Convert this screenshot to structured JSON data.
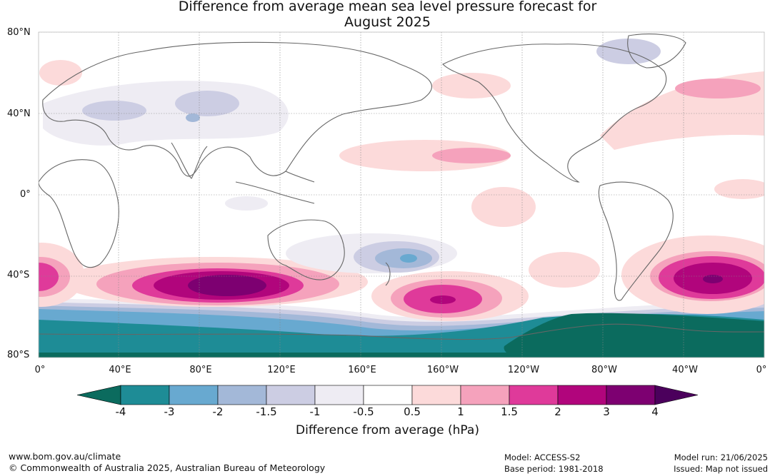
{
  "title_line1": "Difference from average mean sea level pressure forecast for",
  "title_line2": "August 2025",
  "lat_labels": [
    "80°N",
    "40°N",
    "0°",
    "40°S",
    "80°S"
  ],
  "lon_labels": [
    "0°",
    "40°E",
    "80°E",
    "120°E",
    "160°E",
    "160°W",
    "120°W",
    "80°W",
    "40°W",
    "0°"
  ],
  "colorbar": {
    "title": "Difference from average (hPa)",
    "ticks": [
      "-4",
      "-3",
      "-2",
      "-1.5",
      "-1",
      "-0.5",
      "0.5",
      "1",
      "1.5",
      "2",
      "3",
      "4"
    ],
    "colors": {
      "below_min": "#0b6b5e",
      "bins": [
        "#1e8c96",
        "#68a9d0",
        "#a3b8d8",
        "#cccde3",
        "#eeecf3",
        "#ffffff",
        "#fcdada",
        "#f5a2bc",
        "#df3a9a",
        "#b1057c",
        "#7d0071"
      ],
      "above_max": "#4b005c"
    }
  },
  "footer": {
    "site": "www.bom.gov.au/climate",
    "copyright": "© Commonwealth of Australia 2025, Australian Bureau of Meteorology",
    "model": "Model: ACCESS-S2",
    "base_period": "Base period: 1981-2018",
    "model_run": "Model run: 21/06/2025",
    "issued": "Issued: Map not issued"
  }
}
